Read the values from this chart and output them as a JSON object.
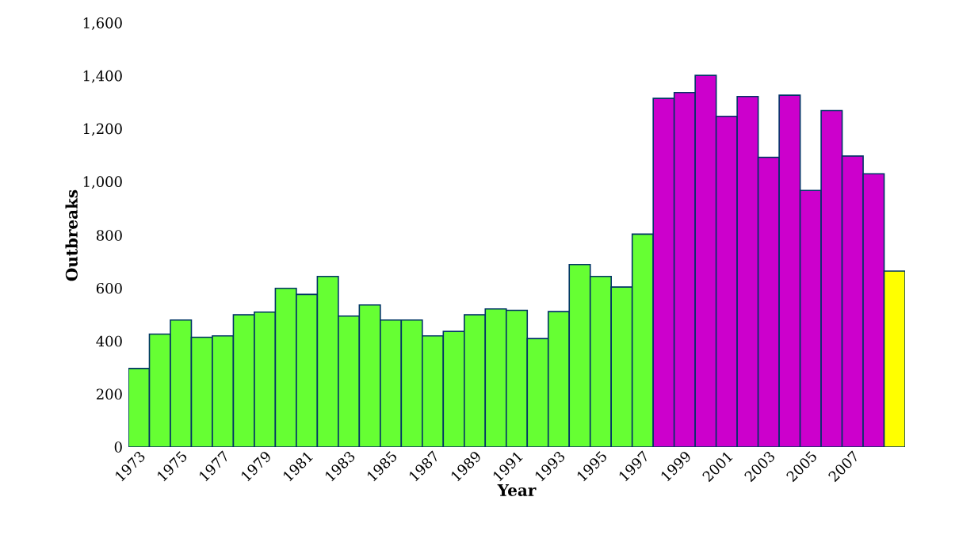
{
  "chart_data": {
    "type": "bar",
    "xlabel": "Year",
    "ylabel": "Outbreaks",
    "categories": [
      "1973",
      null,
      "1975",
      null,
      "1977",
      null,
      "1979",
      null,
      "1981",
      null,
      "1983",
      null,
      "1985",
      null,
      "1987",
      null,
      "1989",
      null,
      "1991",
      null,
      "1993",
      null,
      "1995",
      null,
      "1997",
      null,
      "1999",
      null,
      "2001",
      null,
      "2003",
      null,
      "2005",
      null,
      "2007",
      null,
      null
    ],
    "values": [
      297,
      427,
      480,
      415,
      420,
      500,
      510,
      600,
      577,
      645,
      495,
      537,
      480,
      480,
      420,
      437,
      500,
      522,
      517,
      410,
      512,
      690,
      645,
      605,
      805,
      1318,
      1340,
      1405,
      1250,
      1325,
      1095,
      1330,
      970,
      1272,
      1100,
      1033,
      665
    ],
    "colors": [
      "#66ff33",
      "#66ff33",
      "#66ff33",
      "#66ff33",
      "#66ff33",
      "#66ff33",
      "#66ff33",
      "#66ff33",
      "#66ff33",
      "#66ff33",
      "#66ff33",
      "#66ff33",
      "#66ff33",
      "#66ff33",
      "#66ff33",
      "#66ff33",
      "#66ff33",
      "#66ff33",
      "#66ff33",
      "#66ff33",
      "#66ff33",
      "#66ff33",
      "#66ff33",
      "#66ff33",
      "#66ff33",
      "#cc00cc",
      "#cc00cc",
      "#cc00cc",
      "#cc00cc",
      "#cc00cc",
      "#cc00cc",
      "#cc00cc",
      "#cc00cc",
      "#cc00cc",
      "#cc00cc",
      "#cc00cc",
      "#ffff00"
    ],
    "ylim": [
      0,
      1600
    ],
    "yticks": [
      0,
      200,
      400,
      600,
      800,
      {
        "value": 1000,
        "label": "1,000"
      },
      {
        "value": 1200,
        "label": "1,200"
      },
      {
        "value": 1400,
        "label": "1,400"
      },
      {
        "value": 1600,
        "label": "1,600"
      }
    ]
  }
}
